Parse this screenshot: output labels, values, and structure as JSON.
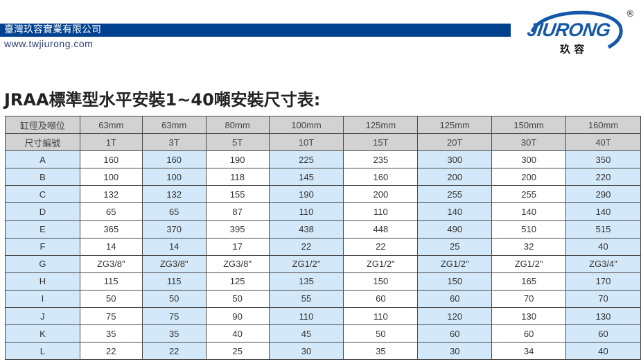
{
  "header": {
    "company": "臺灣玖容實業有限公司",
    "url": "www.twjiurong.com",
    "logo_text": "JIURONG",
    "logo_chinese": "玖 容",
    "logo_mark": "®",
    "brand_color": "#00418f"
  },
  "title": "JRAA標準型水平安裝1~40噸安裝尺寸表:",
  "table": {
    "header_rows": [
      [
        "缸徑及噸位",
        "63mm",
        "63mm",
        "80mm",
        "100mm",
        "125mm",
        "125mm",
        "150mm",
        "160mm"
      ],
      [
        "尺寸編號",
        "1T",
        "3T",
        "5T",
        "10T",
        "15T",
        "20T",
        "30T",
        "40T"
      ]
    ],
    "rows": [
      [
        "A",
        "160",
        "160",
        "190",
        "225",
        "235",
        "300",
        "300",
        "350"
      ],
      [
        "B",
        "100",
        "100",
        "118",
        "145",
        "160",
        "200",
        "200",
        "220"
      ],
      [
        "C",
        "132",
        "132",
        "155",
        "190",
        "200",
        "255",
        "255",
        "290"
      ],
      [
        "D",
        "65",
        "65",
        "87",
        "110",
        "110",
        "140",
        "140",
        "140"
      ],
      [
        "E",
        "365",
        "370",
        "395",
        "438",
        "448",
        "490",
        "510",
        "515"
      ],
      [
        "F",
        "14",
        "14",
        "17",
        "22",
        "22",
        "25",
        "32",
        "40"
      ],
      [
        "G",
        "ZG3/8\"",
        "ZG3/8\"",
        "ZG3/8\"",
        "ZG1/2\"",
        "ZG1/2\"",
        "ZG1/2\"",
        "ZG1/2\"",
        "ZG3/4\""
      ],
      [
        "H",
        "115",
        "115",
        "125",
        "135",
        "150",
        "150",
        "165",
        "170"
      ],
      [
        "I",
        "50",
        "50",
        "50",
        "55",
        "60",
        "60",
        "70",
        "70"
      ],
      [
        "J",
        "75",
        "75",
        "90",
        "110",
        "110",
        "120",
        "130",
        "130"
      ],
      [
        "K",
        "35",
        "35",
        "40",
        "45",
        "50",
        "60",
        "60",
        "60"
      ],
      [
        "L",
        "22",
        "22",
        "25",
        "30",
        "35",
        "30",
        "34",
        "40"
      ]
    ]
  }
}
